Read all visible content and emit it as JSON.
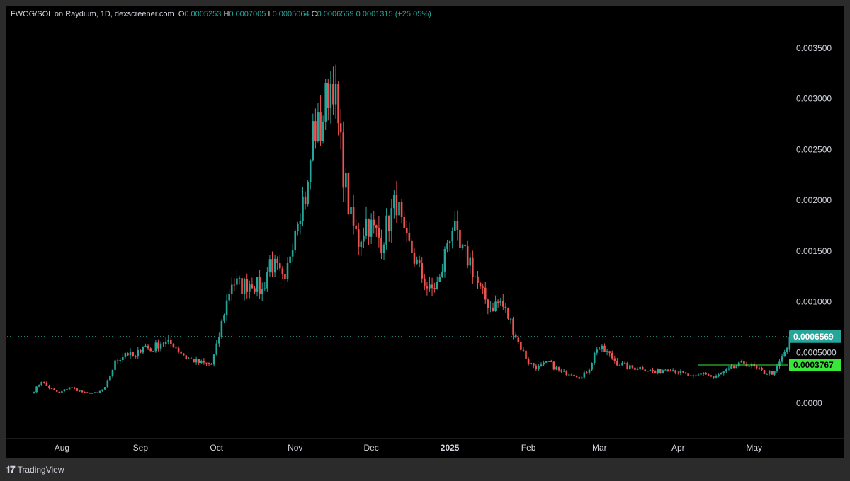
{
  "legend": {
    "symbol": "FWOG/SOL on Raydium, 1D, dexscreener.com",
    "o_label": "O",
    "o_value": "0.0005253",
    "h_label": "H",
    "h_value": "0.0007005",
    "l_label": "L",
    "l_value": "0.0005064",
    "c_label": "C",
    "c_value": "0.0006569",
    "change": "0.0001315 (+25.05%)"
  },
  "price_tag": {
    "label": "0.0006569",
    "value": 0.0006569,
    "color": "#26a69a"
  },
  "level_tag": {
    "label": "0.0003767",
    "value": 0.0003767,
    "color": "#39e639"
  },
  "footer": {
    "brand": "TradingView",
    "icon": "tradingview-logo-icon"
  },
  "colors": {
    "up": "#26a69a",
    "down": "#ef5350",
    "background": "#000000",
    "text": "#d1d4dc"
  },
  "chart_data": {
    "type": "candlestick",
    "y_ticks": [
      {
        "value": 0.0035,
        "label": "0.003500"
      },
      {
        "value": 0.003,
        "label": "0.003000"
      },
      {
        "value": 0.0025,
        "label": "0.002500"
      },
      {
        "value": 0.002,
        "label": "0.002000"
      },
      {
        "value": 0.0015,
        "label": "0.001500"
      },
      {
        "value": 0.001,
        "label": "0.001000"
      },
      {
        "value": 0.0005,
        "label": "0.0005000"
      },
      {
        "value": 0.0,
        "label": "0.0000"
      }
    ],
    "ylim": [
      -0.00035,
      0.00375
    ],
    "x_ticks": [
      {
        "day": 11,
        "label": "Aug"
      },
      {
        "day": 42,
        "label": "Sep"
      },
      {
        "day": 72,
        "label": "Oct"
      },
      {
        "day": 103,
        "label": "Nov"
      },
      {
        "day": 133,
        "label": "Dec"
      },
      {
        "day": 164,
        "label": "2025"
      },
      {
        "day": 195,
        "label": "Feb"
      },
      {
        "day": 223,
        "label": "Mar"
      },
      {
        "day": 254,
        "label": "Apr"
      },
      {
        "day": 284,
        "label": "May"
      }
    ],
    "x_range": [
      0,
      325
    ],
    "grid": false,
    "level_line": {
      "value": 0.0003767,
      "start_day": 262
    },
    "close_key": [
      [
        0,
        0.00012
      ],
      [
        3,
        0.00022
      ],
      [
        6,
        0.00015
      ],
      [
        10,
        0.0001
      ],
      [
        14,
        0.00016
      ],
      [
        20,
        0.0001
      ],
      [
        25,
        0.0001
      ],
      [
        28,
        0.00015
      ],
      [
        32,
        0.0004
      ],
      [
        36,
        0.0005
      ],
      [
        40,
        0.00045
      ],
      [
        43,
        0.00058
      ],
      [
        46,
        0.00052
      ],
      [
        50,
        0.0006
      ],
      [
        55,
        0.00058
      ],
      [
        60,
        0.00045
      ],
      [
        65,
        0.0004
      ],
      [
        70,
        0.00038
      ],
      [
        72,
        0.00055
      ],
      [
        75,
        0.0009
      ],
      [
        78,
        0.0012
      ],
      [
        82,
        0.00115
      ],
      [
        86,
        0.0012
      ],
      [
        90,
        0.0011
      ],
      [
        93,
        0.0014
      ],
      [
        96,
        0.0013
      ],
      [
        99,
        0.00115
      ],
      [
        101,
        0.0015
      ],
      [
        104,
        0.0019
      ],
      [
        108,
        0.0021
      ],
      [
        110,
        0.0027
      ],
      [
        113,
        0.0027
      ],
      [
        116,
        0.0031
      ],
      [
        118,
        0.0032
      ],
      [
        120,
        0.0027
      ],
      [
        122,
        0.0023
      ],
      [
        125,
        0.0018
      ],
      [
        128,
        0.0016
      ],
      [
        131,
        0.0018
      ],
      [
        134,
        0.0017
      ],
      [
        137,
        0.0016
      ],
      [
        140,
        0.0018
      ],
      [
        143,
        0.002
      ],
      [
        146,
        0.0016
      ],
      [
        149,
        0.0015
      ],
      [
        152,
        0.0013
      ],
      [
        156,
        0.0011
      ],
      [
        160,
        0.0012
      ],
      [
        163,
        0.0016
      ],
      [
        165,
        0.00175
      ],
      [
        168,
        0.0015
      ],
      [
        172,
        0.0014
      ],
      [
        176,
        0.0011
      ],
      [
        180,
        0.00095
      ],
      [
        184,
        0.001
      ],
      [
        186,
        0.0009
      ],
      [
        188,
        0.0008
      ],
      [
        191,
        0.0006
      ],
      [
        195,
        0.0004
      ],
      [
        199,
        0.00035
      ],
      [
        203,
        0.0004
      ],
      [
        208,
        0.0003
      ],
      [
        212,
        0.0003
      ],
      [
        216,
        0.00025
      ],
      [
        219,
        0.00035
      ],
      [
        222,
        0.00055
      ],
      [
        226,
        0.0005
      ],
      [
        230,
        0.0004
      ],
      [
        235,
        0.00035
      ],
      [
        240,
        0.00035
      ],
      [
        245,
        0.0003
      ],
      [
        250,
        0.00035
      ],
      [
        255,
        0.0003
      ],
      [
        260,
        0.00025
      ],
      [
        264,
        0.0003
      ],
      [
        268,
        0.00025
      ],
      [
        272,
        0.0003
      ],
      [
        276,
        0.00035
      ],
      [
        280,
        0.0004
      ],
      [
        284,
        0.00035
      ],
      [
        288,
        0.0003
      ],
      [
        292,
        0.0003
      ],
      [
        295,
        0.00045
      ],
      [
        297,
        0.00055
      ],
      [
        298,
        0.00065
      ]
    ],
    "last_candle": {
      "o": 0.0005253,
      "h": 0.0007005,
      "l": 0.0005064,
      "c": 0.0006569
    }
  }
}
